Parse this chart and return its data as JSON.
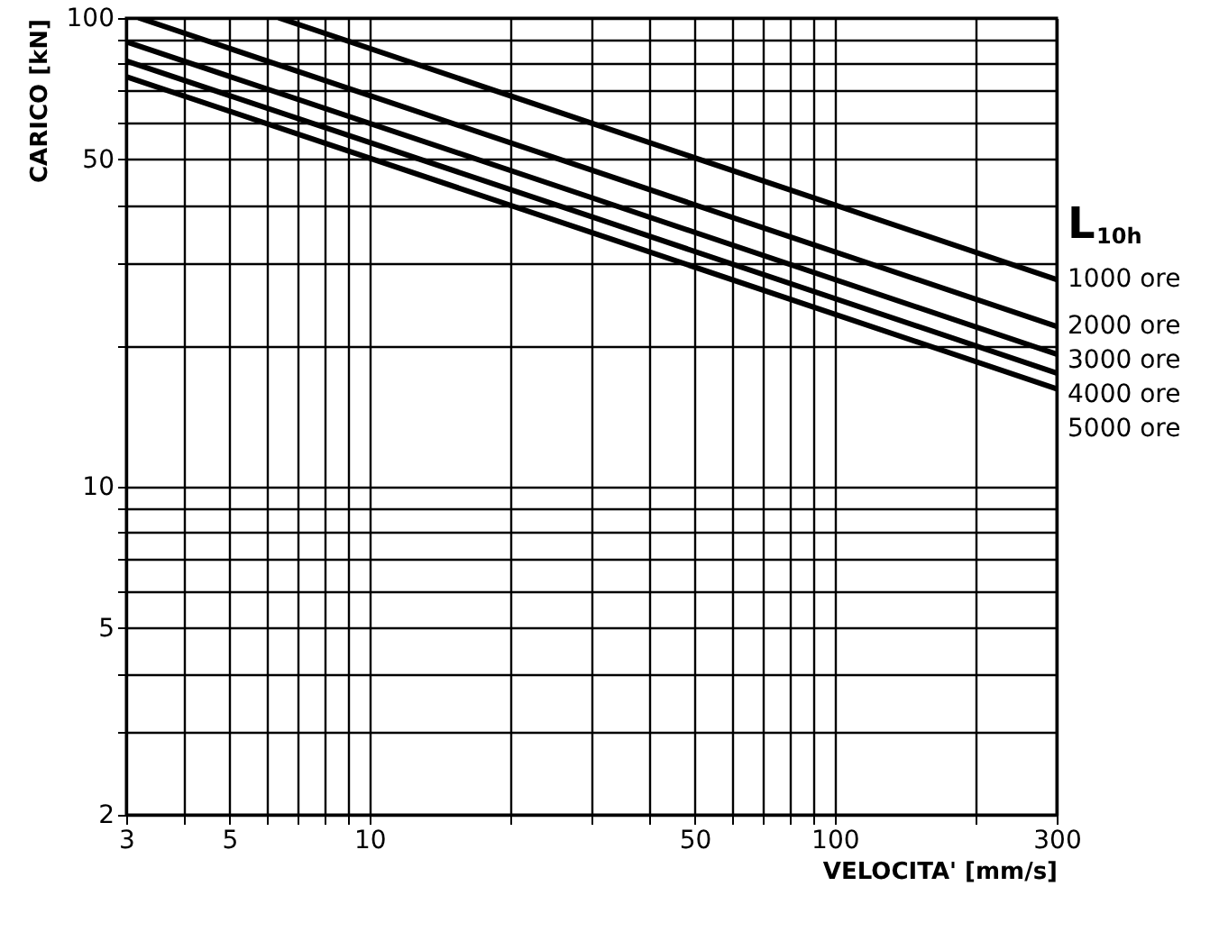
{
  "chart_data": {
    "type": "line",
    "xlabel": "VELOCITA' [mm/s]",
    "ylabel": "CARICO [kN]",
    "legend_title": "L$_{10h}$",
    "log": "xy",
    "grid": true,
    "xlim": [
      3,
      300
    ],
    "xticks": [
      3,
      {
        "value": 4,
        "label": null
      },
      5,
      {
        "value": 6,
        "label": null
      },
      {
        "value": 7,
        "label": null
      },
      {
        "value": 8,
        "label": null
      },
      {
        "value": 9,
        "label": null
      },
      10,
      {
        "value": 20,
        "label": null
      },
      {
        "value": 30,
        "label": null
      },
      {
        "value": 40,
        "label": null
      },
      50,
      {
        "value": 60,
        "label": null
      },
      {
        "value": 70,
        "label": null
      },
      {
        "value": 80,
        "label": null
      },
      {
        "value": 90,
        "label": null
      },
      100,
      {
        "value": 200,
        "label": null
      },
      300
    ],
    "ylim": [
      2,
      100
    ],
    "yticks": [
      2,
      {
        "value": 3,
        "label": null
      },
      {
        "value": 4,
        "label": null
      },
      5,
      {
        "value": 6,
        "label": null
      },
      {
        "value": 7,
        "label": null
      },
      {
        "value": 8,
        "label": null
      },
      {
        "value": 9,
        "label": null
      },
      10,
      {
        "value": 20,
        "label": null
      },
      {
        "value": 30,
        "label": null
      },
      {
        "value": 40,
        "label": null
      },
      50,
      {
        "value": 60,
        "label": null
      },
      {
        "value": 70,
        "label": null
      },
      {
        "value": 80,
        "label": null
      },
      {
        "value": 90,
        "label": null
      },
      100
    ],
    "series": [
      {
        "name": "1000 ore",
        "color": "#000000",
        "x": [
          6.4,
          30,
          300
        ],
        "values": [
          100,
          59.7,
          27.7
        ]
      },
      {
        "name": "2000 ore",
        "color": "#000000",
        "x": [
          3.2,
          30,
          300
        ],
        "values": [
          100,
          47.4,
          22
        ]
      },
      {
        "name": "3000 ore",
        "color": "#000000",
        "x": [
          3,
          30,
          300
        ],
        "values": [
          89,
          41.4,
          19.2
        ]
      },
      {
        "name": "4000 ore",
        "color": "#000000",
        "x": [
          3,
          30,
          300
        ],
        "values": [
          81,
          37.7,
          17.5
        ]
      },
      {
        "name": "5000 ore",
        "color": "#000000",
        "x": [
          3,
          30,
          300
        ],
        "values": [
          75,
          34.9,
          16.2
        ]
      }
    ]
  }
}
